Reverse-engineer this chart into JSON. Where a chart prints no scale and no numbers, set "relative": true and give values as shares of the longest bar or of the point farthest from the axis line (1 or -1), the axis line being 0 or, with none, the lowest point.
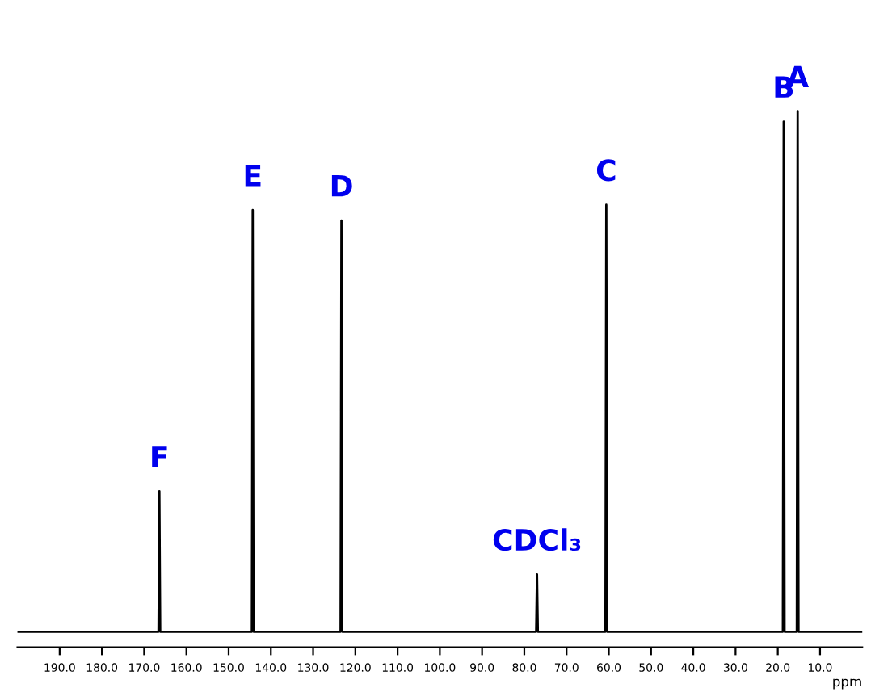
{
  "chart_data": {
    "type": "line",
    "relative": true,
    "xlabel": "ppm",
    "xlim": [
      200,
      0
    ],
    "xticks": [
      {
        "value": 190,
        "label": "190.0"
      },
      {
        "value": 180,
        "label": "180.0"
      },
      {
        "value": 170,
        "label": "170.0"
      },
      {
        "value": 160,
        "label": "160.0"
      },
      {
        "value": 150,
        "label": "150.0"
      },
      {
        "value": 140,
        "label": "140.0"
      },
      {
        "value": 130,
        "label": "130.0"
      },
      {
        "value": 120,
        "label": "120.0"
      },
      {
        "value": 110,
        "label": "110.0"
      },
      {
        "value": 100,
        "label": "100.0"
      },
      {
        "value": 90,
        "label": "90.0"
      },
      {
        "value": 80,
        "label": "80.0"
      },
      {
        "value": 70,
        "label": "70.0"
      },
      {
        "value": 60,
        "label": "60.0"
      },
      {
        "value": 50,
        "label": "50.0"
      },
      {
        "value": 40,
        "label": "40.0"
      },
      {
        "value": 30,
        "label": "30.0"
      },
      {
        "value": 20,
        "label": "20.0"
      },
      {
        "value": 10,
        "label": "10.0"
      }
    ],
    "tick_labels": "x",
    "grid": false,
    "legend": false,
    "series": [
      {
        "color": "#000000",
        "x": [
          200,
          166.6,
          166.4,
          166.2,
          144.5,
          144.3,
          144.1,
          123.5,
          123.3,
          123.1,
          77.2,
          77.0,
          76.8,
          60.8,
          60.6,
          60.4,
          18.8,
          18.6,
          18.4,
          15.5,
          15.3,
          15.1,
          0
        ],
        "values": [
          0,
          0,
          0.27,
          0,
          0,
          0.81,
          0,
          0,
          0.79,
          0,
          0,
          0.11,
          0,
          0,
          0.82,
          0,
          0,
          0.98,
          0,
          0,
          1,
          0,
          0
        ]
      }
    ],
    "annotations": [
      {
        "text": "A",
        "x": 15.3,
        "y": 1
      },
      {
        "text": "B",
        "x": 18.6,
        "y": 0.98
      },
      {
        "text": "C",
        "x": 60.6,
        "y": 0.82
      },
      {
        "text": "D",
        "x": 123.3,
        "y": 0.79
      },
      {
        "text": "E",
        "x": 144.3,
        "y": 0.81
      },
      {
        "text": "F",
        "x": 166.4,
        "y": 0.27
      },
      {
        "text": "CDCl₃",
        "x": 77.0,
        "y": 0.11
      }
    ]
  }
}
